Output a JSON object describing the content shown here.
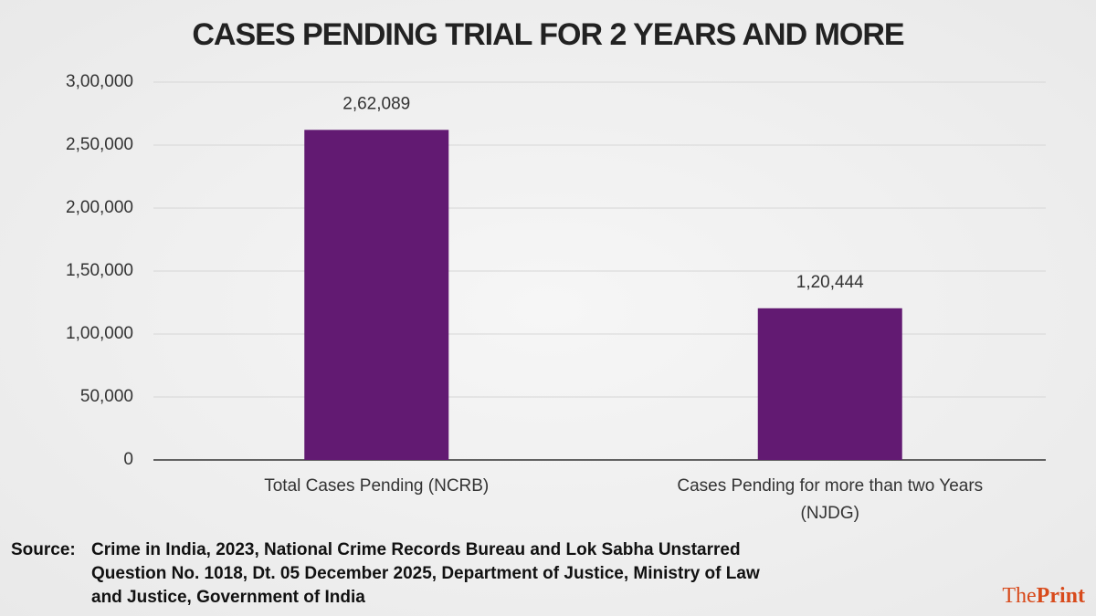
{
  "chart_data": {
    "type": "bar",
    "title": "CASES PENDING TRIAL FOR 2 YEARS AND MORE",
    "categories": [
      "Total Cases Pending (NCRB)",
      "Cases Pending for more than two Years (NJDG)"
    ],
    "values": [
      262089,
      120444
    ],
    "value_labels": [
      "2,62,089",
      "1,20,444"
    ],
    "color": "#621a72",
    "ylim": [
      0,
      300000
    ],
    "yticks": [
      0,
      {
        "value": 50000,
        "label": "50,000"
      },
      {
        "value": 100000,
        "label": "1,00,000"
      },
      {
        "value": 150000,
        "label": "1,50,000"
      },
      {
        "value": 200000,
        "label": "2,00,000"
      },
      {
        "value": 250000,
        "label": "2,50,000"
      },
      {
        "value": 300000,
        "label": "3,00,000"
      }
    ],
    "grid": true
  },
  "footer": {
    "source_label": "Source:",
    "source": "Crime in India, 2023, National Crime Records Bureau and Lok Sabha Unstarred Question No. 1018, Dt. 05 December 2025, Department of Justice, Ministry of Law and Justice, Government of India",
    "logo_the": "The",
    "logo_print": "Print"
  }
}
